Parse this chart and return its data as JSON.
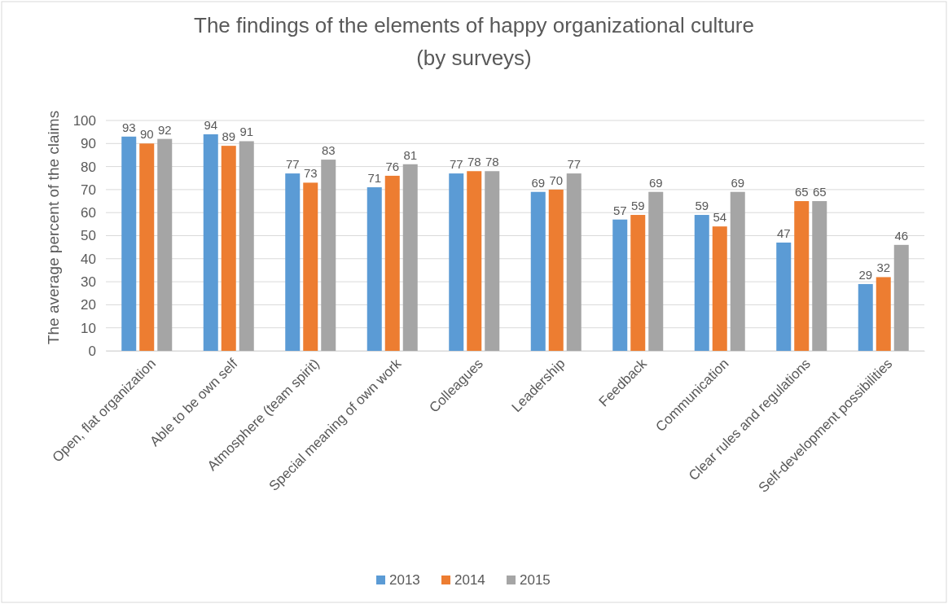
{
  "chart_data": {
    "type": "bar",
    "title": "The findings of the elements of happy organizational culture",
    "subtitle": "(by surveys)",
    "ylabel": "The average percent of the claims",
    "categories": [
      "Open, flat organization",
      "Able to be own self",
      "Atmosphere (team spirit)",
      "Special meaning of own work",
      "Colleagues",
      "Leadership",
      "Feedback",
      "Communication",
      "Clear rules and regulations",
      "Self-development possibilities"
    ],
    "series": [
      {
        "name": "2013",
        "color": "#5b9bd5",
        "values": [
          93,
          94,
          77,
          71,
          77,
          69,
          57,
          59,
          47,
          29
        ]
      },
      {
        "name": "2014",
        "color": "#ed7d31",
        "values": [
          90,
          89,
          73,
          76,
          78,
          70,
          59,
          54,
          65,
          32
        ]
      },
      {
        "name": "2015",
        "color": "#a5a5a5",
        "values": [
          92,
          91,
          83,
          81,
          78,
          77,
          69,
          69,
          65,
          46
        ]
      }
    ],
    "ylim": [
      0,
      100
    ],
    "yticks": [
      0,
      10,
      20,
      30,
      40,
      50,
      60,
      70,
      80,
      90,
      100
    ],
    "grid": "y",
    "legend": "bottom",
    "data_labels": true
  }
}
